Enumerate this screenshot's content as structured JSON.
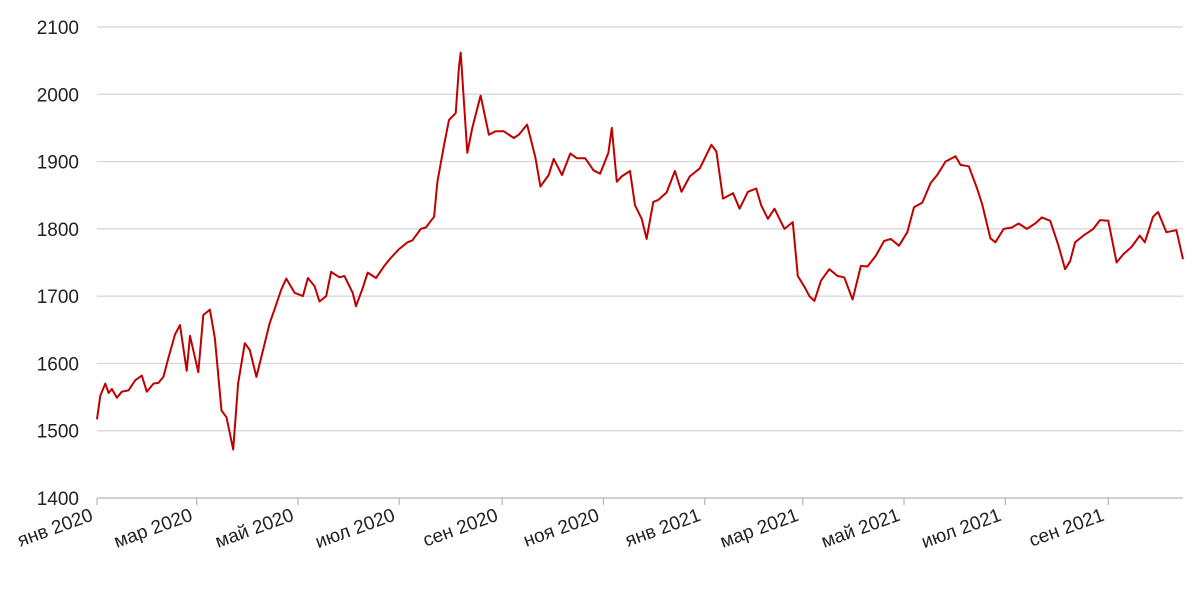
{
  "chart_data": {
    "type": "line",
    "title": "",
    "xlabel": "",
    "ylabel": "",
    "ylim": [
      1400,
      2100
    ],
    "xlim": [
      "2020-01-01",
      "2021-10-16"
    ],
    "y_ticks": [
      1400,
      1500,
      1600,
      1700,
      1800,
      1900,
      2000,
      2100
    ],
    "x_ticks": [
      {
        "date": "2020-01-01",
        "label": "янв 2020"
      },
      {
        "date": "2020-03-01",
        "label": "мар 2020"
      },
      {
        "date": "2020-05-01",
        "label": "май 2020"
      },
      {
        "date": "2020-07-01",
        "label": "июл 2020"
      },
      {
        "date": "2020-09-01",
        "label": "сен 2020"
      },
      {
        "date": "2020-11-01",
        "label": "ноя 2020"
      },
      {
        "date": "2021-01-01",
        "label": "янв 2021"
      },
      {
        "date": "2021-03-01",
        "label": "мар 2021"
      },
      {
        "date": "2021-05-01",
        "label": "май 2021"
      },
      {
        "date": "2021-07-01",
        "label": "июл 2021"
      },
      {
        "date": "2021-09-01",
        "label": "сен 2021"
      }
    ],
    "grid": "horizontal",
    "legend": "none",
    "color": "#c00000",
    "series": [
      {
        "x": [
          "2020-01-01",
          "2020-01-03",
          "2020-01-06",
          "2020-01-08",
          "2020-01-10",
          "2020-01-13",
          "2020-01-16",
          "2020-01-20",
          "2020-01-24",
          "2020-01-28",
          "2020-01-31",
          "2020-02-04",
          "2020-02-07",
          "2020-02-10",
          "2020-02-13",
          "2020-02-17",
          "2020-02-20",
          "2020-02-24",
          "2020-02-26",
          "2020-03-02",
          "2020-03-05",
          "2020-03-09",
          "2020-03-12",
          "2020-03-16",
          "2020-03-19",
          "2020-03-23",
          "2020-03-26",
          "2020-03-30",
          "2020-04-02",
          "2020-04-06",
          "2020-04-09",
          "2020-04-14",
          "2020-04-17",
          "2020-04-21",
          "2020-04-24",
          "2020-04-29",
          "2020-05-04",
          "2020-05-07",
          "2020-05-11",
          "2020-05-14",
          "2020-05-18",
          "2020-05-21",
          "2020-05-26",
          "2020-05-29",
          "2020-06-03",
          "2020-06-05",
          "2020-06-09",
          "2020-06-12",
          "2020-06-17",
          "2020-06-22",
          "2020-06-26",
          "2020-07-01",
          "2020-07-06",
          "2020-07-09",
          "2020-07-14",
          "2020-07-17",
          "2020-07-22",
          "2020-07-24",
          "2020-07-28",
          "2020-07-31",
          "2020-08-04",
          "2020-08-06",
          "2020-08-07",
          "2020-08-11",
          "2020-08-14",
          "2020-08-19",
          "2020-08-24",
          "2020-08-28",
          "2020-09-02",
          "2020-09-08",
          "2020-09-11",
          "2020-09-16",
          "2020-09-21",
          "2020-09-24",
          "2020-09-29",
          "2020-10-02",
          "2020-10-07",
          "2020-10-12",
          "2020-10-16",
          "2020-10-21",
          "2020-10-26",
          "2020-10-30",
          "2020-11-04",
          "2020-11-06",
          "2020-11-09",
          "2020-11-12",
          "2020-11-17",
          "2020-11-20",
          "2020-11-24",
          "2020-11-27",
          "2020-12-01",
          "2020-12-04",
          "2020-12-09",
          "2020-12-14",
          "2020-12-18",
          "2020-12-23",
          "2020-12-29",
          "2021-01-05",
          "2021-01-08",
          "2021-01-12",
          "2021-01-18",
          "2021-01-22",
          "2021-01-27",
          "2021-02-01",
          "2021-02-04",
          "2021-02-08",
          "2021-02-12",
          "2021-02-18",
          "2021-02-23",
          "2021-02-26",
          "2021-03-02",
          "2021-03-05",
          "2021-03-08",
          "2021-03-12",
          "2021-03-17",
          "2021-03-22",
          "2021-03-26",
          "2021-03-31",
          "2021-04-05",
          "2021-04-09",
          "2021-04-14",
          "2021-04-19",
          "2021-04-23",
          "2021-04-28",
          "2021-05-03",
          "2021-05-07",
          "2021-05-12",
          "2021-05-17",
          "2021-05-21",
          "2021-05-26",
          "2021-06-01",
          "2021-06-04",
          "2021-06-09",
          "2021-06-14",
          "2021-06-17",
          "2021-06-22",
          "2021-06-25",
          "2021-06-30",
          "2021-07-05",
          "2021-07-09",
          "2021-07-14",
          "2021-07-19",
          "2021-07-23",
          "2021-07-28",
          "2021-08-02",
          "2021-08-06",
          "2021-08-09",
          "2021-08-12",
          "2021-08-17",
          "2021-08-23",
          "2021-08-27",
          "2021-09-01",
          "2021-09-06",
          "2021-09-10",
          "2021-09-15",
          "2021-09-20",
          "2021-09-23",
          "2021-09-28",
          "2021-10-01",
          "2021-10-06",
          "2021-10-12",
          "2021-10-16"
        ],
        "y": [
          1517,
          1552,
          1570,
          1556,
          1562,
          1549,
          1558,
          1560,
          1575,
          1582,
          1558,
          1570,
          1571,
          1580,
          1608,
          1643,
          1657,
          1589,
          1641,
          1587,
          1672,
          1680,
          1637,
          1530,
          1520,
          1472,
          1570,
          1630,
          1620,
          1580,
          1610,
          1660,
          1681,
          1710,
          1726,
          1705,
          1700,
          1727,
          1715,
          1692,
          1700,
          1736,
          1728,
          1730,
          1705,
          1685,
          1712,
          1735,
          1727,
          1745,
          1757,
          1770,
          1780,
          1783,
          1800,
          1802,
          1818,
          1870,
          1925,
          1962,
          1972,
          2041,
          2062,
          1913,
          1950,
          1998,
          1940,
          1945,
          1945,
          1935,
          1940,
          1955,
          1906,
          1863,
          1880,
          1904,
          1880,
          1912,
          1905,
          1905,
          1887,
          1882,
          1913,
          1950,
          1870,
          1878,
          1886,
          1835,
          1815,
          1785,
          1840,
          1843,
          1854,
          1886,
          1855,
          1878,
          1890,
          1925,
          1915,
          1845,
          1853,
          1830,
          1855,
          1860,
          1835,
          1815,
          1830,
          1800,
          1810,
          1730,
          1714,
          1700,
          1693,
          1723,
          1740,
          1730,
          1728,
          1695,
          1745,
          1744,
          1760,
          1782,
          1785,
          1775,
          1795,
          1832,
          1839,
          1868,
          1880,
          1900,
          1908,
          1895,
          1893,
          1860,
          1837,
          1786,
          1780,
          1800,
          1802,
          1808,
          1800,
          1808,
          1817,
          1812,
          1775,
          1740,
          1752,
          1780,
          1790,
          1800,
          1813,
          1812,
          1750,
          1762,
          1773,
          1790,
          1780,
          1818,
          1825,
          1795,
          1798,
          1755
        ]
      }
    ]
  }
}
